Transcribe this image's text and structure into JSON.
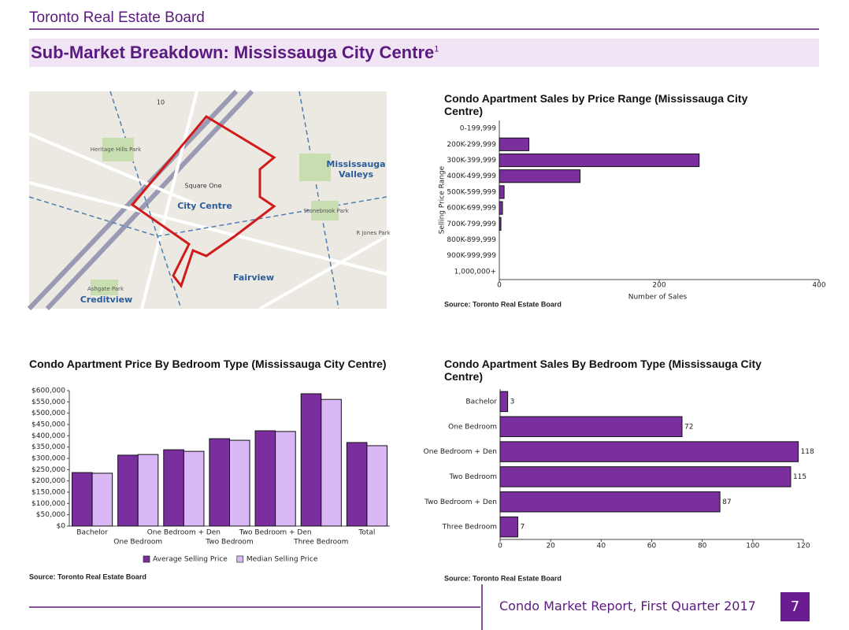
{
  "header": {
    "organization": "Toronto Real Estate Board",
    "title": "Sub-Market Breakdown: Mississauga City Centre",
    "footnote_mark": "1"
  },
  "map": {
    "labels": [
      "10",
      "Heritage Hills Park",
      "Mississauga",
      "Valleys",
      "Square One",
      "City Centre",
      "Stonebrook Park",
      "R Jones Park",
      "Fairview",
      "Creditview",
      "Ashgate Park"
    ]
  },
  "chart_data": [
    {
      "type": "barh",
      "title": "Condo Apartment Sales by Price Range (Mississauga City Centre)",
      "categories": [
        "0-199,999",
        "200K-299,999",
        "300K-399,999",
        "400K-499,999",
        "500K-599,999",
        "600K-699,999",
        "700K-799,999",
        "800K-899,999",
        "900K-999,999",
        "1,000,000+"
      ],
      "values": [
        0,
        37,
        250,
        101,
        6,
        4,
        2,
        0,
        0,
        0
      ],
      "color": "#7b2f9e",
      "xlim": [
        0,
        400
      ],
      "xticks": [
        0,
        200,
        400
      ],
      "xlabel": "Number of Sales",
      "ylabel": "Selling Price Range",
      "source": "Source: Toronto Real Estate Board"
    },
    {
      "type": "bar",
      "title": "Condo Apartment Price By Bedroom Type (Mississauga City Centre)",
      "categories": [
        "Bachelor",
        "One Bedroom",
        "One Bedroom + Den",
        "Two Bedroom",
        "Two Bedroom + Den",
        "Three Bedroom",
        "Total"
      ],
      "series": [
        {
          "name": "Average Selling Price",
          "color": "#7b2f9e",
          "values": [
            237000,
            314000,
            338000,
            387000,
            422000,
            586000,
            370000
          ]
        },
        {
          "name": "Median Selling Price",
          "color": "#d9b8f5",
          "values": [
            234000,
            317000,
            331000,
            380000,
            419000,
            561000,
            356000
          ]
        }
      ],
      "ylim": [
        0,
        600000
      ],
      "yticks": [
        {
          "value": 0,
          "label": "$0"
        },
        {
          "value": 50000,
          "label": "$50,000"
        },
        {
          "value": 100000,
          "label": "$100,000"
        },
        {
          "value": 150000,
          "label": "$150,000"
        },
        {
          "value": 200000,
          "label": "$200,000"
        },
        {
          "value": 250000,
          "label": "$250,000"
        },
        {
          "value": 300000,
          "label": "$300,000"
        },
        {
          "value": 350000,
          "label": "$350,000"
        },
        {
          "value": 400000,
          "label": "$400,000"
        },
        {
          "value": 450000,
          "label": "$450,000"
        },
        {
          "value": 500000,
          "label": "$500,000"
        },
        {
          "value": 550000,
          "label": "$550,000"
        },
        {
          "value": 600000,
          "label": "$600,000"
        }
      ],
      "legend": "bottom",
      "source": "Source: Toronto Real Estate Board"
    },
    {
      "type": "barh",
      "title": "Condo Apartment Sales By Bedroom Type (Mississauga City Centre)",
      "categories": [
        "Bachelor",
        "One Bedroom",
        "One Bedroom + Den",
        "Two Bedroom",
        "Two Bedroom + Den",
        "Three Bedroom"
      ],
      "values": [
        3,
        72,
        118,
        115,
        87,
        7
      ],
      "color": "#7b2f9e",
      "xlim": [
        0,
        120
      ],
      "xticks": [
        0,
        20,
        40,
        60,
        80,
        100,
        120
      ],
      "data_labels": true,
      "source": "Source: Toronto Real Estate Board"
    }
  ],
  "footer": {
    "report": "Condo Market Report, First Quarter 2017",
    "page": "7"
  }
}
